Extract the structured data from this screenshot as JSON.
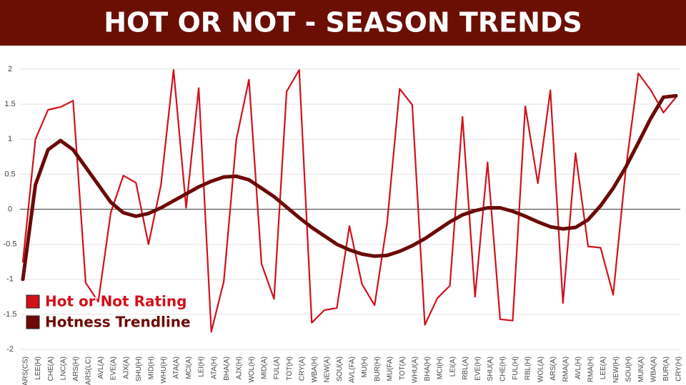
{
  "chart_data": {
    "type": "line",
    "title": "HOT OR NOT - SEASON TRENDS",
    "categories": [
      "ARS(CS)",
      "LEE(H)",
      "CHE(A)",
      "LNC(A)",
      "ARS(H)",
      "ARS(LC)",
      "AVL(A)",
      "EVE(A)",
      "AJX(A)",
      "SHU(H)",
      "MID(H)",
      "WHU(H)",
      "ATA(A)",
      "MCI(A)",
      "LEI(H)",
      "ATA(H)",
      "BHA(A)",
      "AJX(H)",
      "WOL(H)",
      "MID(A)",
      "FUL(A)",
      "TOT(H)",
      "CRY(A)",
      "WBA(H)",
      "NEW(A)",
      "SOU(A)",
      "AVL(FA)",
      "MU(H)",
      "BUR(H)",
      "MU(FA)",
      "TOT(A)",
      "WHU(A)",
      "BHA(H)",
      "MCI(H)",
      "LEI(A)",
      "RBL(A)",
      "EVE(H)",
      "SHU(A)",
      "CHE(H)",
      "FUL(H)",
      "RBL(H)",
      "WOL(A)",
      "ARS(A)",
      "RMA(A)",
      "AVL(H)",
      "RMA(H)",
      "LEE(A)",
      "NEW(H)",
      "SOU(H)",
      "MUN(A)",
      "WBA(A)",
      "BUR(A)",
      "CRY(H)"
    ],
    "series": [
      {
        "name": "Hot or Not Rating",
        "color": "#d0121b",
        "values": [
          -0.75,
          1.0,
          1.42,
          1.46,
          1.55,
          -1.05,
          -1.32,
          -0.05,
          0.48,
          0.38,
          -0.5,
          0.35,
          1.99,
          0.02,
          1.73,
          -1.75,
          -1.03,
          1.0,
          1.85,
          -0.78,
          -1.28,
          1.68,
          1.99,
          -1.62,
          -1.44,
          -1.41,
          -0.24,
          -1.07,
          -1.37,
          -0.2,
          1.72,
          1.49,
          -1.65,
          -1.27,
          -1.09,
          1.32,
          -1.25,
          0.67,
          -1.57,
          -1.59,
          1.47,
          0.37,
          1.7,
          -1.34,
          0.8,
          -0.53,
          -0.55,
          -1.22,
          0.57,
          1.94,
          1.7,
          1.38,
          1.6
        ]
      },
      {
        "name": "Hotness Trendline",
        "color": "#6b0a07",
        "values": [
          -1.0,
          0.35,
          0.85,
          0.98,
          0.85,
          0.6,
          0.35,
          0.1,
          -0.05,
          -0.1,
          -0.06,
          0.02,
          0.12,
          0.22,
          0.32,
          0.4,
          0.46,
          0.47,
          0.42,
          0.3,
          0.18,
          0.03,
          -0.12,
          -0.26,
          -0.38,
          -0.5,
          -0.58,
          -0.64,
          -0.67,
          -0.66,
          -0.6,
          -0.52,
          -0.42,
          -0.3,
          -0.18,
          -0.08,
          -0.02,
          0.02,
          0.02,
          -0.03,
          -0.1,
          -0.18,
          -0.25,
          -0.28,
          -0.26,
          -0.15,
          0.05,
          0.3,
          0.6,
          0.95,
          1.3,
          1.6,
          1.62
        ]
      }
    ],
    "ylim": [
      -2,
      2
    ],
    "yticks": [
      2,
      1.5,
      1,
      0.5,
      0,
      -0.5,
      -1,
      -1.5,
      -2
    ],
    "grid": true,
    "legend": "lower left"
  }
}
